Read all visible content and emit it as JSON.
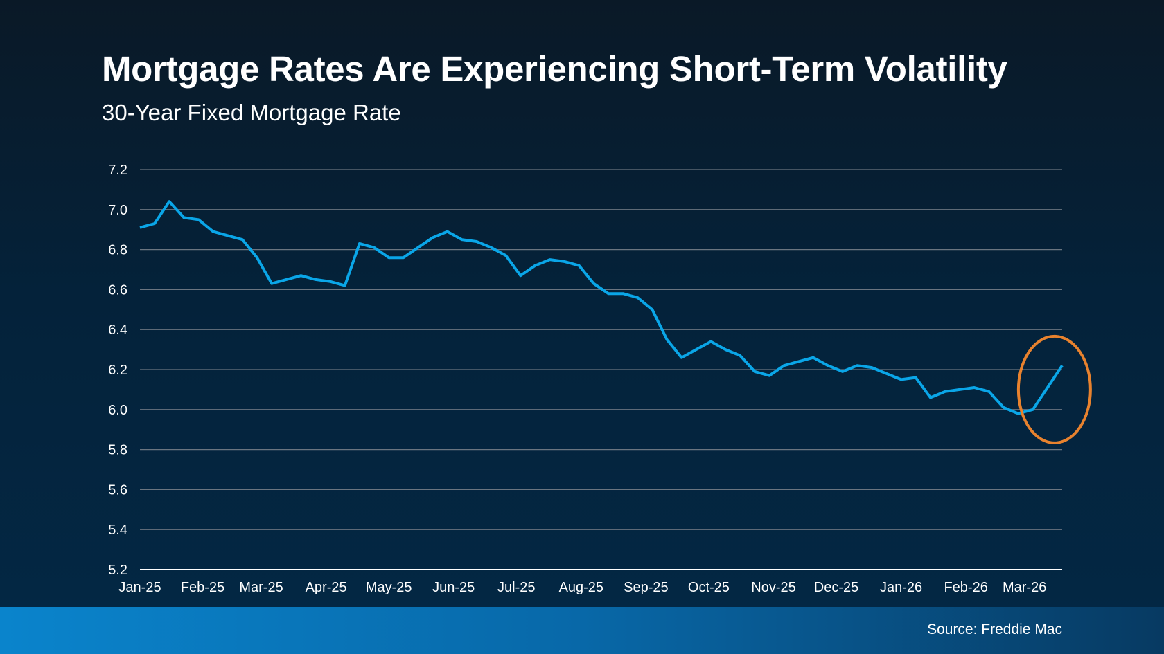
{
  "title": "Mortgage Rates Are Experiencing Short-Term Volatility",
  "subtitle": "30-Year Fixed Mortgage Rate",
  "source": "Source: Freddie Mac",
  "colors": {
    "line": "#0aa6e8",
    "highlight_circle": "#e8822e",
    "grid": "#6b7580",
    "axis": "#ffffff"
  },
  "chart_data": {
    "type": "line",
    "title": "Mortgage Rates Are Experiencing Short-Term Volatility",
    "subtitle": "30-Year Fixed Mortgage Rate",
    "xlabel": "",
    "ylabel": "",
    "ylim": [
      5.2,
      7.2
    ],
    "yticks": [
      "7.2",
      "7.0",
      "6.8",
      "6.6",
      "6.4",
      "6.2",
      "6.0",
      "5.8",
      "5.6",
      "5.4",
      "5.2"
    ],
    "grid": true,
    "legend": "none",
    "xtick_labels": [
      {
        "date": "2025-01-02",
        "label": "Jan-25"
      },
      {
        "date": "2025-02-01",
        "label": "Feb-25"
      },
      {
        "date": "2025-03-01",
        "label": "Mar-25"
      },
      {
        "date": "2025-04-01",
        "label": "Apr-25"
      },
      {
        "date": "2025-05-01",
        "label": "May-25"
      },
      {
        "date": "2025-06-01",
        "label": "Jun-25"
      },
      {
        "date": "2025-07-01",
        "label": "Jul-25"
      },
      {
        "date": "2025-08-01",
        "label": "Aug-25"
      },
      {
        "date": "2025-09-01",
        "label": "Sep-25"
      },
      {
        "date": "2025-10-01",
        "label": "Oct-25"
      },
      {
        "date": "2025-11-01",
        "label": "Nov-25"
      },
      {
        "date": "2025-12-01",
        "label": "Dec-25"
      },
      {
        "date": "2026-01-01",
        "label": "Jan-26"
      },
      {
        "date": "2026-02-01",
        "label": "Feb-26"
      },
      {
        "date": "2026-03-01",
        "label": "Mar-26"
      }
    ],
    "x": [
      "2025-01-02",
      "2025-01-09",
      "2025-01-16",
      "2025-01-23",
      "2025-01-30",
      "2025-02-06",
      "2025-02-13",
      "2025-02-20",
      "2025-02-27",
      "2025-03-06",
      "2025-03-13",
      "2025-03-20",
      "2025-03-27",
      "2025-04-03",
      "2025-04-10",
      "2025-04-17",
      "2025-04-24",
      "2025-05-01",
      "2025-05-08",
      "2025-05-15",
      "2025-05-22",
      "2025-05-29",
      "2025-06-05",
      "2025-06-12",
      "2025-06-19",
      "2025-06-26",
      "2025-07-03",
      "2025-07-10",
      "2025-07-17",
      "2025-07-24",
      "2025-07-31",
      "2025-08-07",
      "2025-08-14",
      "2025-08-21",
      "2025-08-28",
      "2025-09-04",
      "2025-09-11",
      "2025-09-18",
      "2025-09-25",
      "2025-10-02",
      "2025-10-09",
      "2025-10-16",
      "2025-10-23",
      "2025-10-30",
      "2025-11-06",
      "2025-11-13",
      "2025-11-20",
      "2025-11-27",
      "2025-12-04",
      "2025-12-11",
      "2025-12-18",
      "2025-12-25",
      "2026-01-01",
      "2026-01-08",
      "2026-01-15",
      "2026-01-22",
      "2026-01-29",
      "2026-02-05",
      "2026-02-12",
      "2026-02-19",
      "2026-02-26",
      "2026-03-05",
      "2026-03-12",
      "2026-03-19"
    ],
    "series": [
      {
        "values": [
          6.91,
          6.93,
          7.04,
          6.96,
          6.95,
          6.89,
          6.87,
          6.85,
          6.76,
          6.63,
          6.65,
          6.67,
          6.65,
          6.64,
          6.62,
          6.83,
          6.81,
          6.76,
          6.76,
          6.81,
          6.86,
          6.89,
          6.85,
          6.84,
          6.81,
          6.77,
          6.67,
          6.72,
          6.75,
          6.74,
          6.72,
          6.63,
          6.58,
          6.58,
          6.56,
          6.5,
          6.35,
          6.26,
          6.3,
          6.34,
          6.3,
          6.27,
          6.19,
          6.17,
          6.22,
          6.24,
          6.26,
          6.22,
          6.19,
          6.22,
          6.21,
          6.18,
          6.15,
          6.16,
          6.06,
          6.09,
          6.1,
          6.11,
          6.09,
          6.01,
          5.98,
          6.0,
          6.11,
          6.22
        ]
      }
    ],
    "annotations": [
      {
        "type": "circle",
        "highlights": "Mar-26 rise",
        "center_date": "2026-03-12",
        "center_value": 6.1
      }
    ]
  }
}
